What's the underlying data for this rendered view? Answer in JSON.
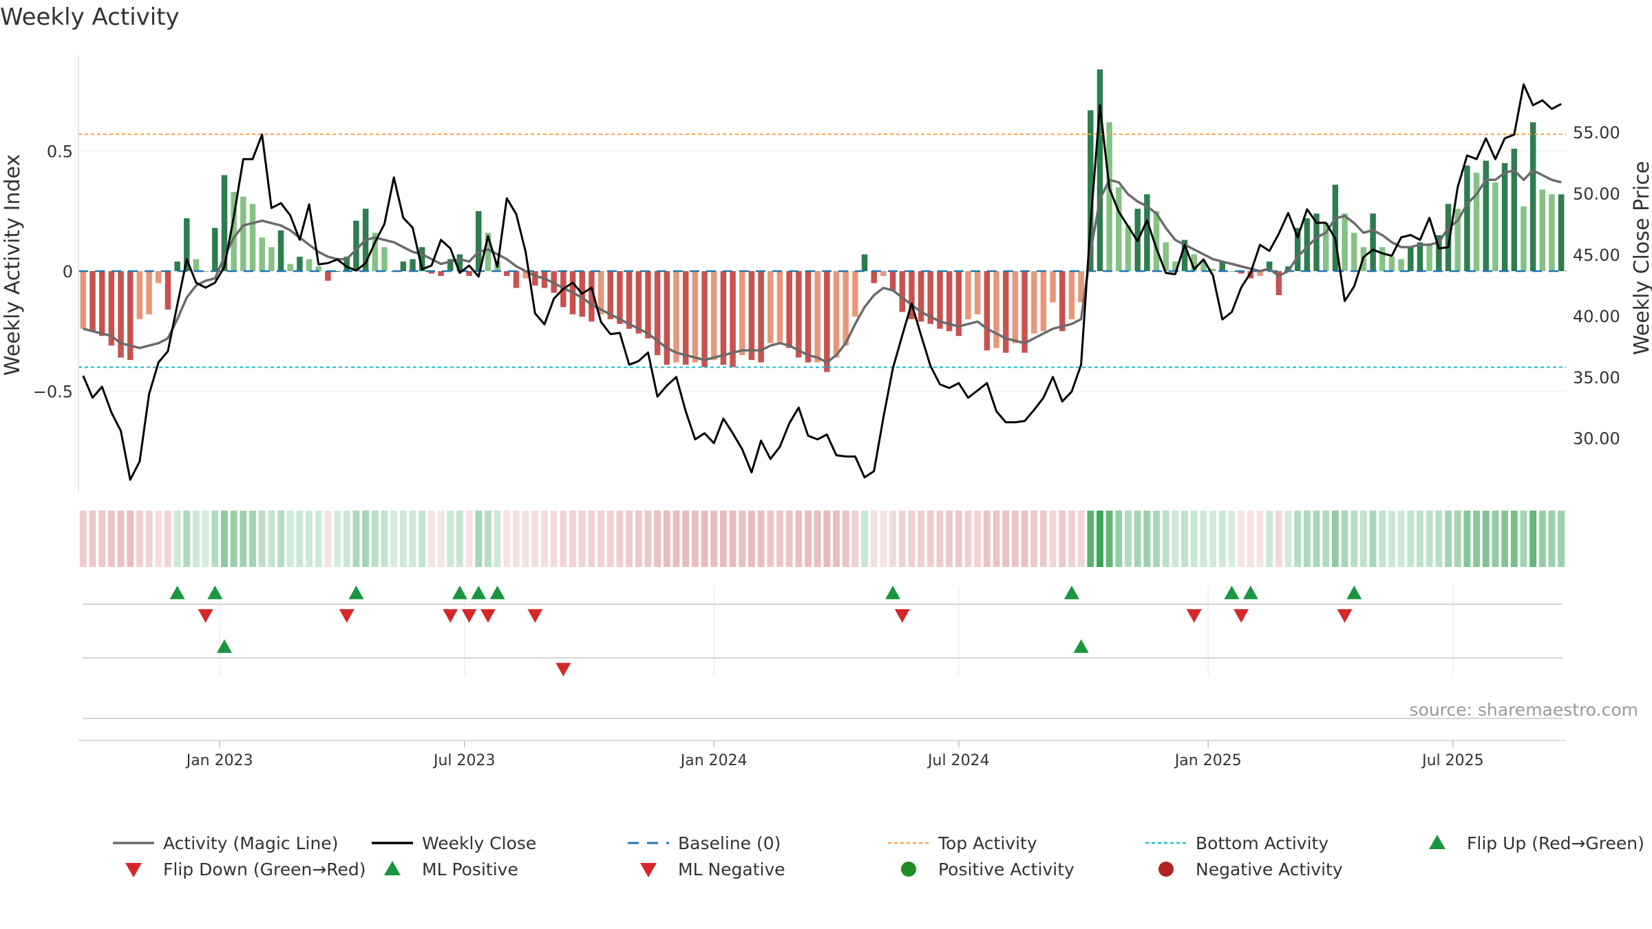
{
  "chart_data": {
    "type": "bar",
    "title": "Weekly Activity",
    "ylabel": "Weekly Activity Index",
    "y2label": "Weekly Close Price",
    "ylim": [
      -0.92,
      0.9
    ],
    "y2lim": [
      25.6,
      61.3
    ],
    "yticks": [
      -0.5,
      0,
      0.5
    ],
    "ytick_labels": [
      "−0.5",
      "0",
      "0.5"
    ],
    "y2ticks": [
      30,
      35,
      40,
      45,
      50,
      55
    ],
    "y2tick_labels": [
      "30.00",
      "35.00",
      "40.00",
      "45.00",
      "50.00",
      "55.00"
    ],
    "xticks": [
      {
        "label": "Jan 2023",
        "week": 15
      },
      {
        "label": "Jul 2023",
        "week": 41
      },
      {
        "label": "Jan 2024",
        "week": 67.5
      },
      {
        "label": "Jul 2024",
        "week": 93.5
      },
      {
        "label": "Jan 2025",
        "week": 120
      },
      {
        "label": "Jul 2025",
        "week": 146
      }
    ],
    "top_activity": 0.57,
    "bottom_activity": -0.4,
    "source": "source: sharemaestro.com",
    "activity": [
      -0.24,
      -0.25,
      -0.27,
      -0.31,
      -0.36,
      -0.37,
      -0.2,
      -0.18,
      -0.05,
      -0.16,
      0.04,
      0.22,
      0.05,
      0,
      0.18,
      0.4,
      0.33,
      0.31,
      0.28,
      0.14,
      0.1,
      0.17,
      0.03,
      0.06,
      0.05,
      0.02,
      -0.04,
      0,
      0.06,
      0.21,
      0.26,
      0.16,
      0.1,
      0,
      0.04,
      0.05,
      0.1,
      -0.01,
      -0.02,
      0.05,
      0.07,
      -0.02,
      0.25,
      0.16,
      0.04,
      -0.02,
      -0.07,
      -0.03,
      -0.06,
      -0.07,
      -0.09,
      -0.15,
      -0.18,
      -0.19,
      -0.21,
      -0.18,
      -0.2,
      -0.22,
      -0.24,
      -0.26,
      -0.28,
      -0.35,
      -0.39,
      -0.38,
      -0.39,
      -0.38,
      -0.4,
      -0.37,
      -0.39,
      -0.4,
      -0.35,
      -0.37,
      -0.38,
      -0.3,
      -0.3,
      -0.32,
      -0.36,
      -0.38,
      -0.38,
      -0.42,
      -0.36,
      -0.31,
      -0.19,
      0.07,
      -0.05,
      -0.02,
      -0.08,
      -0.17,
      -0.2,
      -0.21,
      -0.22,
      -0.24,
      -0.25,
      -0.27,
      -0.2,
      -0.18,
      -0.33,
      -0.32,
      -0.34,
      -0.3,
      -0.34,
      -0.26,
      -0.25,
      -0.13,
      -0.25,
      -0.2,
      -0.13,
      0.67,
      0.84,
      0.62,
      0.35,
      0.19,
      0.26,
      0.32,
      0.25,
      0.12,
      0.04,
      0.13,
      0.07,
      0.04,
      0.01,
      0.04,
      0,
      -0.01,
      -0.03,
      -0.02,
      0.04,
      -0.1,
      0.02,
      0.18,
      0.22,
      0.24,
      0.2,
      0.36,
      0.24,
      0.16,
      0.1,
      0.24,
      0.1,
      0.06,
      0.05,
      0.1,
      0.12,
      0.11,
      0.15,
      0.28,
      0.26,
      0.44,
      0.41,
      0.46,
      0.37,
      0.45,
      0.51,
      0.27,
      0.62,
      0.34,
      0.32,
      0.32
    ],
    "magic_line": [
      -0.24,
      -0.25,
      -0.26,
      -0.27,
      -0.3,
      -0.31,
      -0.32,
      -0.31,
      -0.3,
      -0.28,
      -0.2,
      -0.11,
      -0.06,
      -0.04,
      -0.03,
      0.06,
      0.14,
      0.19,
      0.2,
      0.21,
      0.2,
      0.19,
      0.17,
      0.14,
      0.11,
      0.08,
      0.06,
      0.05,
      0.05,
      0.09,
      0.13,
      0.14,
      0.13,
      0.12,
      0.1,
      0.08,
      0.07,
      0.05,
      0.03,
      0.04,
      0.05,
      0.04,
      0.08,
      0.09,
      0.07,
      0.05,
      0.02,
      0,
      -0.02,
      -0.03,
      -0.05,
      -0.07,
      -0.09,
      -0.11,
      -0.14,
      -0.16,
      -0.18,
      -0.2,
      -0.22,
      -0.24,
      -0.26,
      -0.29,
      -0.32,
      -0.34,
      -0.35,
      -0.36,
      -0.37,
      -0.36,
      -0.35,
      -0.34,
      -0.33,
      -0.33,
      -0.33,
      -0.31,
      -0.3,
      -0.31,
      -0.33,
      -0.35,
      -0.36,
      -0.38,
      -0.35,
      -0.3,
      -0.22,
      -0.15,
      -0.1,
      -0.07,
      -0.08,
      -0.11,
      -0.14,
      -0.17,
      -0.19,
      -0.21,
      -0.22,
      -0.23,
      -0.22,
      -0.21,
      -0.24,
      -0.26,
      -0.28,
      -0.29,
      -0.3,
      -0.28,
      -0.26,
      -0.24,
      -0.23,
      -0.22,
      -0.2,
      0.08,
      0.3,
      0.38,
      0.37,
      0.32,
      0.29,
      0.27,
      0.24,
      0.18,
      0.13,
      0.11,
      0.09,
      0.07,
      0.05,
      0.04,
      0.03,
      0.02,
      0.01,
      0,
      0.01,
      -0.02,
      0,
      0.06,
      0.1,
      0.14,
      0.16,
      0.22,
      0.23,
      0.2,
      0.16,
      0.17,
      0.15,
      0.12,
      0.1,
      0.1,
      0.11,
      0.11,
      0.12,
      0.18,
      0.21,
      0.28,
      0.32,
      0.38,
      0.38,
      0.41,
      0.42,
      0.38,
      0.42,
      0.4,
      0.38,
      0.37
    ],
    "weekly_close": [
      35.1,
      33.3,
      34.2,
      32.1,
      30.6,
      26.6,
      28.1,
      33.6,
      36.2,
      37.1,
      40.9,
      44.6,
      42.7,
      42.3,
      42.7,
      44,
      48.1,
      52.8,
      52.8,
      54.8,
      48.8,
      49.2,
      48.2,
      46.2,
      49.1,
      44.2,
      44.3,
      44.6,
      44,
      43.7,
      44.3,
      46,
      47.5,
      51.3,
      48,
      47.2,
      43.8,
      44.1,
      46.2,
      45.5,
      43.5,
      44.1,
      43.2,
      46.5,
      44,
      49.6,
      48.3,
      45.2,
      40.2,
      39.3,
      41.4,
      42.2,
      42.7,
      41.8,
      42.3,
      39.5,
      38.5,
      38.6,
      36,
      36.3,
      37,
      33.4,
      34.3,
      35,
      32.2,
      29.9,
      30.4,
      29.6,
      31.6,
      30.4,
      29.1,
      27.2,
      29.8,
      28.3,
      29.3,
      31.2,
      32.5,
      30.2,
      29.9,
      30.3,
      28.6,
      28.5,
      28.5,
      26.8,
      27.3,
      31.7,
      35.7,
      38.4,
      41,
      38.4,
      35.9,
      34.4,
      34.1,
      34.5,
      33.3,
      33.9,
      34.5,
      32.2,
      31.3,
      31.3,
      31.4,
      32.3,
      33.3,
      35,
      33,
      33.8,
      36,
      47.5,
      57.2,
      50.4,
      48.5,
      47.3,
      46.1,
      47.8,
      45.5,
      43.5,
      43.4,
      45.8,
      43.8,
      44.6,
      43.3,
      39.7,
      40.3,
      42.3,
      43.5,
      45.8,
      45.3,
      46.7,
      48.4,
      46.4,
      48.7,
      47.6,
      47.6,
      46.3,
      41.2,
      42.4,
      44.8,
      45.4,
      45.1,
      44.9,
      46.4,
      46.6,
      46.2,
      48,
      45.5,
      45.6,
      50.5,
      53.1,
      52.8,
      54.5,
      52.8,
      54.5,
      54.8,
      58.9,
      57.2,
      57.6,
      56.9,
      57.3
    ],
    "color_strip": [
      -0.24,
      -0.25,
      -0.27,
      -0.31,
      -0.36,
      -0.37,
      -0.2,
      -0.18,
      -0.05,
      -0.16,
      0.04,
      0.22,
      0.05,
      0,
      0.18,
      0.4,
      0.33,
      0.31,
      0.28,
      0.14,
      0.1,
      0.17,
      0.03,
      0.06,
      0.05,
      0.02,
      -0.04,
      0,
      0.06,
      0.21,
      0.26,
      0.16,
      0.1,
      0,
      0.04,
      0.05,
      0.1,
      -0.01,
      -0.02,
      0.05,
      0.07,
      -0.02,
      0.25,
      0.16,
      0.04,
      -0.02,
      -0.07,
      -0.03,
      -0.06,
      -0.07,
      -0.09,
      -0.15,
      -0.18,
      -0.19,
      -0.21,
      -0.18,
      -0.2,
      -0.22,
      -0.24,
      -0.26,
      -0.28,
      -0.35,
      -0.39,
      -0.38,
      -0.39,
      -0.38,
      -0.4,
      -0.37,
      -0.39,
      -0.4,
      -0.35,
      -0.37,
      -0.38,
      -0.3,
      -0.3,
      -0.32,
      -0.36,
      -0.38,
      -0.38,
      -0.42,
      -0.36,
      -0.31,
      -0.19,
      0.07,
      -0.05,
      -0.02,
      -0.08,
      -0.17,
      -0.2,
      -0.21,
      -0.22,
      -0.24,
      -0.25,
      -0.27,
      -0.2,
      -0.18,
      -0.33,
      -0.32,
      -0.34,
      -0.3,
      -0.34,
      -0.26,
      -0.25,
      -0.13,
      -0.25,
      -0.2,
      -0.13,
      0.67,
      0.84,
      0.62,
      0.35,
      0.19,
      0.26,
      0.32,
      0.25,
      0.12,
      0.04,
      0.13,
      0.07,
      0.04,
      0.01,
      0.04,
      0,
      -0.01,
      -0.03,
      -0.02,
      0.04,
      -0.1,
      0.02,
      0.18,
      0.22,
      0.24,
      0.2,
      0.36,
      0.24,
      0.16,
      0.1,
      0.24,
      0.1,
      0.06,
      0.05,
      0.1,
      0.12,
      0.11,
      0.15,
      0.28,
      0.26,
      0.44,
      0.41,
      0.46,
      0.37,
      0.45,
      0.51,
      0.27,
      0.62,
      0.34,
      0.32,
      0.32
    ],
    "flip_up_weeks": [
      10,
      14,
      29,
      40,
      42,
      44,
      86,
      105,
      122,
      124,
      135
    ],
    "flip_down_weeks": [
      13,
      28,
      39,
      41,
      43,
      48,
      87,
      118,
      123,
      134
    ],
    "ml_positive_weeks": [
      15,
      106
    ],
    "ml_negative_weeks": [
      51
    ],
    "colors": {
      "pos_dark": "#2e7d4f",
      "pos_light": "#85c285",
      "neg_dark": "#c85250",
      "neg_light": "#e8977a",
      "magic_line": "#6b6b6b",
      "close": "#000000",
      "baseline": "#1f77b4",
      "top": "#ff9f40",
      "bottom": "#17becf",
      "up_marker": "#1a9641",
      "down_marker": "#d62728",
      "pos_dot": "#228b22",
      "neg_dot": "#b22222"
    }
  },
  "legend": [
    {
      "label": "Activity (Magic Line)",
      "kind": "line",
      "color": "#6b6b6b"
    },
    {
      "label": "Weekly Close",
      "kind": "line",
      "color": "#000000"
    },
    {
      "label": "Baseline (0)",
      "kind": "dash",
      "color": "#1f77b4"
    },
    {
      "label": "Top Activity",
      "kind": "dot-line",
      "color": "#ff9f40"
    },
    {
      "label": "Bottom Activity",
      "kind": "dot-line",
      "color": "#17becf"
    },
    {
      "label": "Flip Up (Red→Green)",
      "kind": "tri-up",
      "color": "#1a9641"
    },
    {
      "label": "Flip Down (Green→Red)",
      "kind": "tri-down",
      "color": "#d62728"
    },
    {
      "label": "ML Positive",
      "kind": "tri-up",
      "color": "#1a9641"
    },
    {
      "label": "ML Negative",
      "kind": "tri-down",
      "color": "#d62728"
    },
    {
      "label": "Positive Activity",
      "kind": "circle",
      "color": "#228b22"
    },
    {
      "label": "Negative Activity",
      "kind": "circle",
      "color": "#b22222"
    }
  ]
}
